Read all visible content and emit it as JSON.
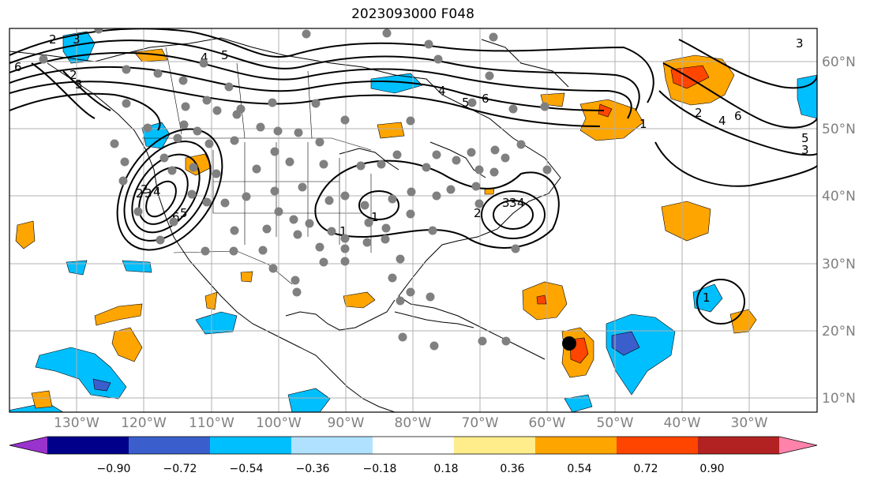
{
  "title": "2023093000 F048",
  "longitude_labels": [
    "130°W",
    "120°W",
    "110°W",
    "100°W",
    "90°W",
    "80°W",
    "70°W",
    "60°W",
    "50°W",
    "40°W",
    "30°W"
  ],
  "latitude_labels": [
    "60°N",
    "50°N",
    "40°N",
    "30°N",
    "20°N",
    "10°N"
  ],
  "colorbar": {
    "colors": [
      "#9a32cd",
      "#00008b",
      "#3a5fcd",
      "#00bfff",
      "#b0e2ff",
      "#ffffff",
      "#ffec8b",
      "#ffa500",
      "#ff4500",
      "#b22222",
      "#ff82ab"
    ],
    "tick_labels": [
      "−0.90",
      "−0.72",
      "−0.54",
      "−0.36",
      "−0.18",
      "0.18",
      "0.36",
      "0.54",
      "0.72",
      "0.90"
    ]
  },
  "contour_labels": [
    "2",
    "3",
    "4",
    "5",
    "6",
    "1",
    "2",
    "3",
    "4",
    "6",
    "5",
    "3",
    "2",
    "3",
    "1",
    "1",
    "2",
    "3",
    "4",
    "5",
    "6",
    "2",
    "3",
    "4",
    "1",
    "2",
    "3",
    "4",
    "5",
    "6"
  ],
  "colors": {
    "land": "#ffffff",
    "coast": "#000000",
    "grid": "#b0b0b0",
    "stations": "#808080",
    "storm_marker": "#000000"
  }
}
